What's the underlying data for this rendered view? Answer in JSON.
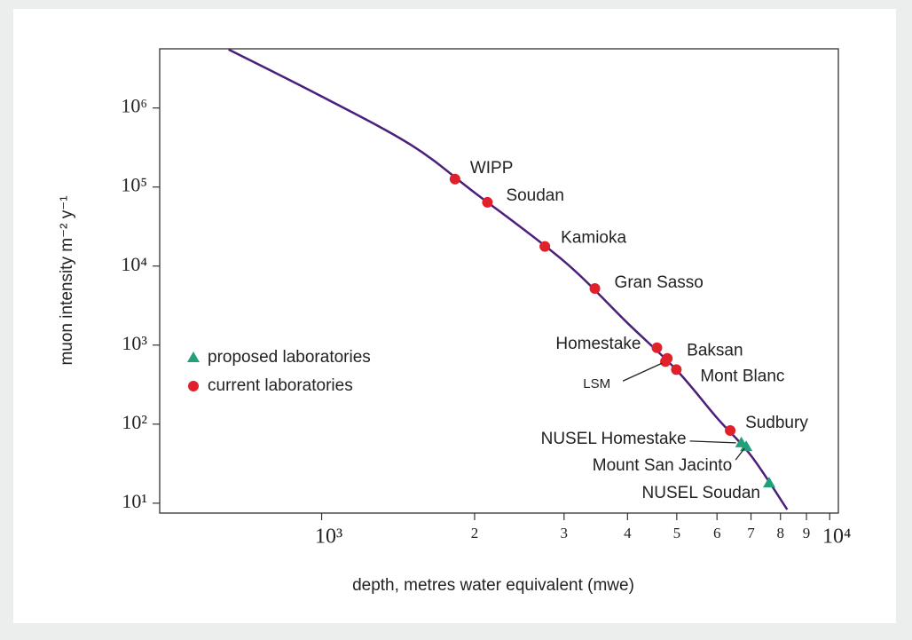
{
  "chart_data": {
    "type": "scatter",
    "xlabel": "depth, metres water equivalent (mwe)",
    "ylabel": "muon intensity m⁻² y⁻¹",
    "xscale": "log",
    "yscale": "log",
    "xlim": [
      480,
      10400
    ],
    "ylim": [
      7.5,
      5600000
    ],
    "xticks": [
      5,
      6,
      7,
      8,
      9,
      {
        "value": 1000,
        "label": "10³"
      },
      {
        "value": 2000,
        "label": "2"
      },
      {
        "value": 3000,
        "label": "3"
      },
      {
        "value": 4000,
        "label": "4"
      },
      {
        "value": 5000,
        "label": "5"
      },
      {
        "value": 6000,
        "label": "6"
      },
      {
        "value": 7000,
        "label": "7"
      },
      {
        "value": 8000,
        "label": "8"
      },
      {
        "value": 9000,
        "label": "9"
      },
      {
        "value": 10000,
        "label": "10⁴"
      }
    ],
    "yticks": [
      {
        "value": 10,
        "label": "10¹"
      },
      {
        "value": 100,
        "label": "10²"
      },
      {
        "value": 1000,
        "label": "10³"
      },
      {
        "value": 10000,
        "label": "10⁴"
      },
      {
        "value": 100000,
        "label": "10⁵"
      },
      {
        "value": 1000000,
        "label": "10⁶"
      }
    ],
    "curve": {
      "color": "#4b1f7a",
      "x": [
        656,
        1000,
        1500,
        2000,
        3000,
        4000,
        5000,
        6000,
        7000,
        8250
      ],
      "values": [
        5500000,
        1400000,
        340000,
        85000,
        11500,
        1900,
        480,
        120,
        40,
        8.3
      ]
    },
    "legend": "center-left",
    "series": [
      {
        "name": "proposed laboratories",
        "color": "#22a07a",
        "marker": "triangle",
        "labels": [
          "NUSEL Homestake",
          "Mount San Jacinto",
          "NUSEL Soudan"
        ],
        "x": [
          6700,
          6850,
          7600
        ],
        "values": [
          58,
          52,
          18
        ]
      },
      {
        "name": "current laboratories",
        "color": "#e0202a",
        "marker": "circle",
        "labels": [
          "WIPP",
          "Soudan",
          "Kamioka",
          "Gran Sasso",
          "Homestake",
          "Baksan",
          "Mont Blanc",
          "LSM",
          "Sudbury"
        ],
        "x": [
          1830,
          2120,
          2750,
          3450,
          4570,
          4790,
          4990,
          4750,
          6370
        ],
        "values": [
          126000,
          64000,
          17700,
          5200,
          925,
          680,
          490,
          620,
          83
        ]
      }
    ]
  }
}
